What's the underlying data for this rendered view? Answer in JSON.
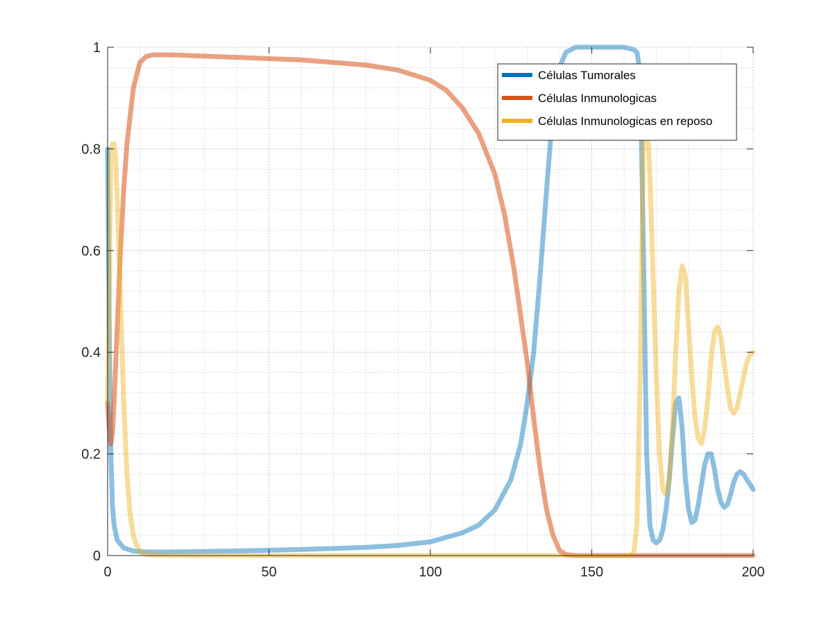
{
  "chart_data": {
    "type": "line",
    "title": "",
    "xlabel": "",
    "ylabel": "",
    "xlim": [
      0,
      200
    ],
    "ylim": [
      0,
      1
    ],
    "xticks": [
      0,
      50,
      100,
      150,
      200
    ],
    "xtick_labels": [
      "0",
      "50",
      "100",
      "150",
      "200"
    ],
    "yticks": [
      0,
      0.2,
      0.4,
      0.6,
      0.8,
      1
    ],
    "ytick_labels": [
      "0",
      "0.2",
      "0.4",
      "0.6",
      "0.8",
      "1"
    ],
    "grid": true,
    "minor_grid": true,
    "legend_position": "top-right",
    "legend": [
      {
        "label": "Células Tumorales",
        "color": "#0072BD"
      },
      {
        "label": "Células Inmunologicas",
        "color": "#D95319"
      },
      {
        "label": "Células Inmunologicas en reposo",
        "color": "#EDB120"
      }
    ],
    "series": [
      {
        "name": "Células Tumorales",
        "color": "#0072BD",
        "x": [
          0,
          0.5,
          1,
          1.5,
          2,
          3,
          5,
          8,
          12,
          20,
          40,
          60,
          80,
          90,
          100,
          110,
          115,
          120,
          125,
          128,
          130,
          132,
          134,
          136,
          138,
          140,
          142,
          145,
          150,
          160,
          163,
          164,
          165,
          166,
          167,
          168,
          169,
          170,
          171,
          172,
          173,
          174,
          175,
          176,
          177,
          178,
          179,
          180,
          181,
          182,
          183,
          184,
          185,
          186,
          187,
          188,
          189,
          190,
          191,
          192,
          193,
          194,
          195,
          196,
          197,
          198,
          199,
          200
        ],
        "y": [
          0.8,
          0.45,
          0.2,
          0.1,
          0.06,
          0.03,
          0.015,
          0.009,
          0.007,
          0.007,
          0.009,
          0.012,
          0.016,
          0.02,
          0.027,
          0.045,
          0.06,
          0.09,
          0.15,
          0.22,
          0.3,
          0.4,
          0.55,
          0.72,
          0.88,
          0.96,
          0.99,
          1.0,
          1.0,
          1.0,
          0.995,
          0.99,
          0.95,
          0.6,
          0.2,
          0.06,
          0.03,
          0.025,
          0.03,
          0.05,
          0.09,
          0.15,
          0.23,
          0.3,
          0.31,
          0.25,
          0.15,
          0.09,
          0.065,
          0.07,
          0.1,
          0.14,
          0.18,
          0.2,
          0.2,
          0.17,
          0.13,
          0.105,
          0.095,
          0.1,
          0.12,
          0.145,
          0.16,
          0.165,
          0.16,
          0.15,
          0.14,
          0.13
        ]
      },
      {
        "name": "Células Inmunologicas",
        "color": "#D95319",
        "x": [
          0,
          0.5,
          1,
          1.5,
          2,
          3,
          4,
          5,
          6,
          8,
          10,
          12,
          14,
          16,
          20,
          40,
          60,
          80,
          90,
          100,
          105,
          110,
          115,
          120,
          123,
          126,
          128,
          130,
          132,
          134,
          136,
          138,
          140,
          142,
          145,
          150,
          200
        ],
        "y": [
          0.3,
          0.25,
          0.22,
          0.24,
          0.3,
          0.45,
          0.6,
          0.72,
          0.81,
          0.92,
          0.97,
          0.982,
          0.985,
          0.985,
          0.985,
          0.98,
          0.975,
          0.965,
          0.955,
          0.935,
          0.915,
          0.88,
          0.83,
          0.75,
          0.67,
          0.56,
          0.47,
          0.38,
          0.27,
          0.17,
          0.09,
          0.04,
          0.01,
          0.002,
          0.0,
          0.0,
          0.0
        ]
      },
      {
        "name": "Células Inmunologicas en reposo",
        "color": "#EDB120",
        "x": [
          0,
          0.5,
          1,
          1.5,
          2,
          2.5,
          3,
          4,
          5,
          6,
          7,
          8,
          9,
          10,
          11,
          12,
          14,
          20,
          50,
          100,
          150,
          160,
          162,
          163,
          164,
          165,
          166,
          167,
          168,
          169,
          170,
          171,
          172,
          173,
          174,
          175,
          176,
          177,
          178,
          179,
          180,
          181,
          182,
          183,
          184,
          185,
          186,
          187,
          188,
          189,
          190,
          191,
          192,
          193,
          194,
          195,
          196,
          197,
          198,
          199,
          200
        ],
        "y": [
          0.3,
          0.5,
          0.78,
          0.81,
          0.81,
          0.78,
          0.7,
          0.5,
          0.3,
          0.16,
          0.08,
          0.04,
          0.02,
          0.008,
          0.004,
          0.002,
          0.001,
          0.0,
          0.0,
          0.0,
          0.0,
          0.0,
          0.0,
          0.005,
          0.06,
          0.35,
          0.82,
          0.88,
          0.75,
          0.55,
          0.35,
          0.2,
          0.13,
          0.12,
          0.15,
          0.25,
          0.4,
          0.52,
          0.57,
          0.55,
          0.45,
          0.35,
          0.27,
          0.23,
          0.22,
          0.25,
          0.31,
          0.39,
          0.44,
          0.45,
          0.43,
          0.38,
          0.33,
          0.29,
          0.28,
          0.29,
          0.32,
          0.35,
          0.38,
          0.395,
          0.4
        ]
      }
    ]
  }
}
